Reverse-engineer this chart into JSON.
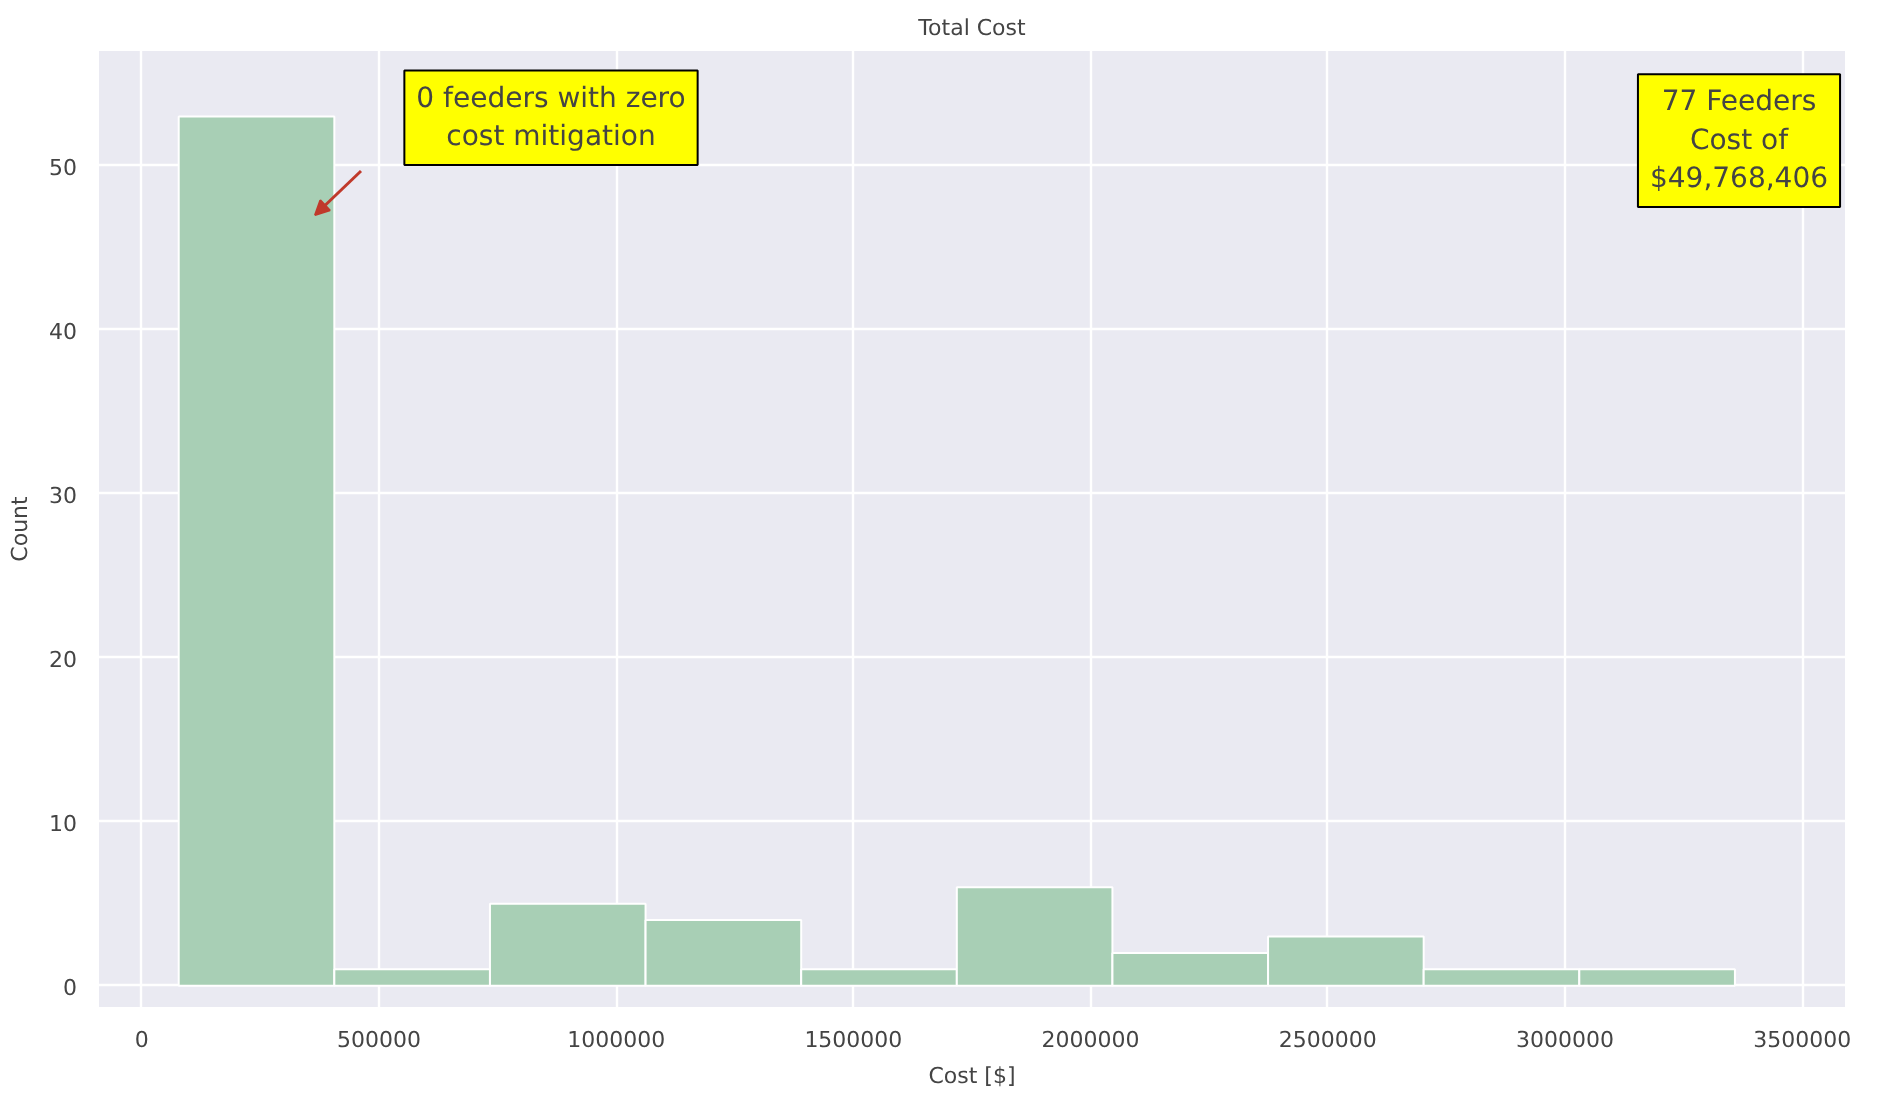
{
  "chart_data": {
    "type": "histogram",
    "title": "Total Cost",
    "xlabel": "Cost [$]",
    "ylabel": "Count",
    "bins": [
      78000,
      406000,
      734000,
      1062000,
      1390000,
      1718000,
      2046000,
      2374000,
      2702000,
      3030000,
      3358000
    ],
    "values": [
      53,
      1,
      5,
      4,
      1,
      6,
      2,
      3,
      1,
      1
    ],
    "color": "#a8cfb5",
    "xlim": [
      -90000,
      3590000
    ],
    "xticks": [
      0,
      500000,
      1000000,
      1500000,
      2000000,
      2500000,
      3000000,
      3500000
    ],
    "ylim": [
      -1.3,
      57
    ],
    "yticks": [
      0,
      10,
      20,
      30,
      40,
      50
    ],
    "grid": true,
    "annotations": [
      "0 feeders with zero\ncost mitigation",
      "77 Feeders\nCost of\n$49,768,406"
    ]
  }
}
